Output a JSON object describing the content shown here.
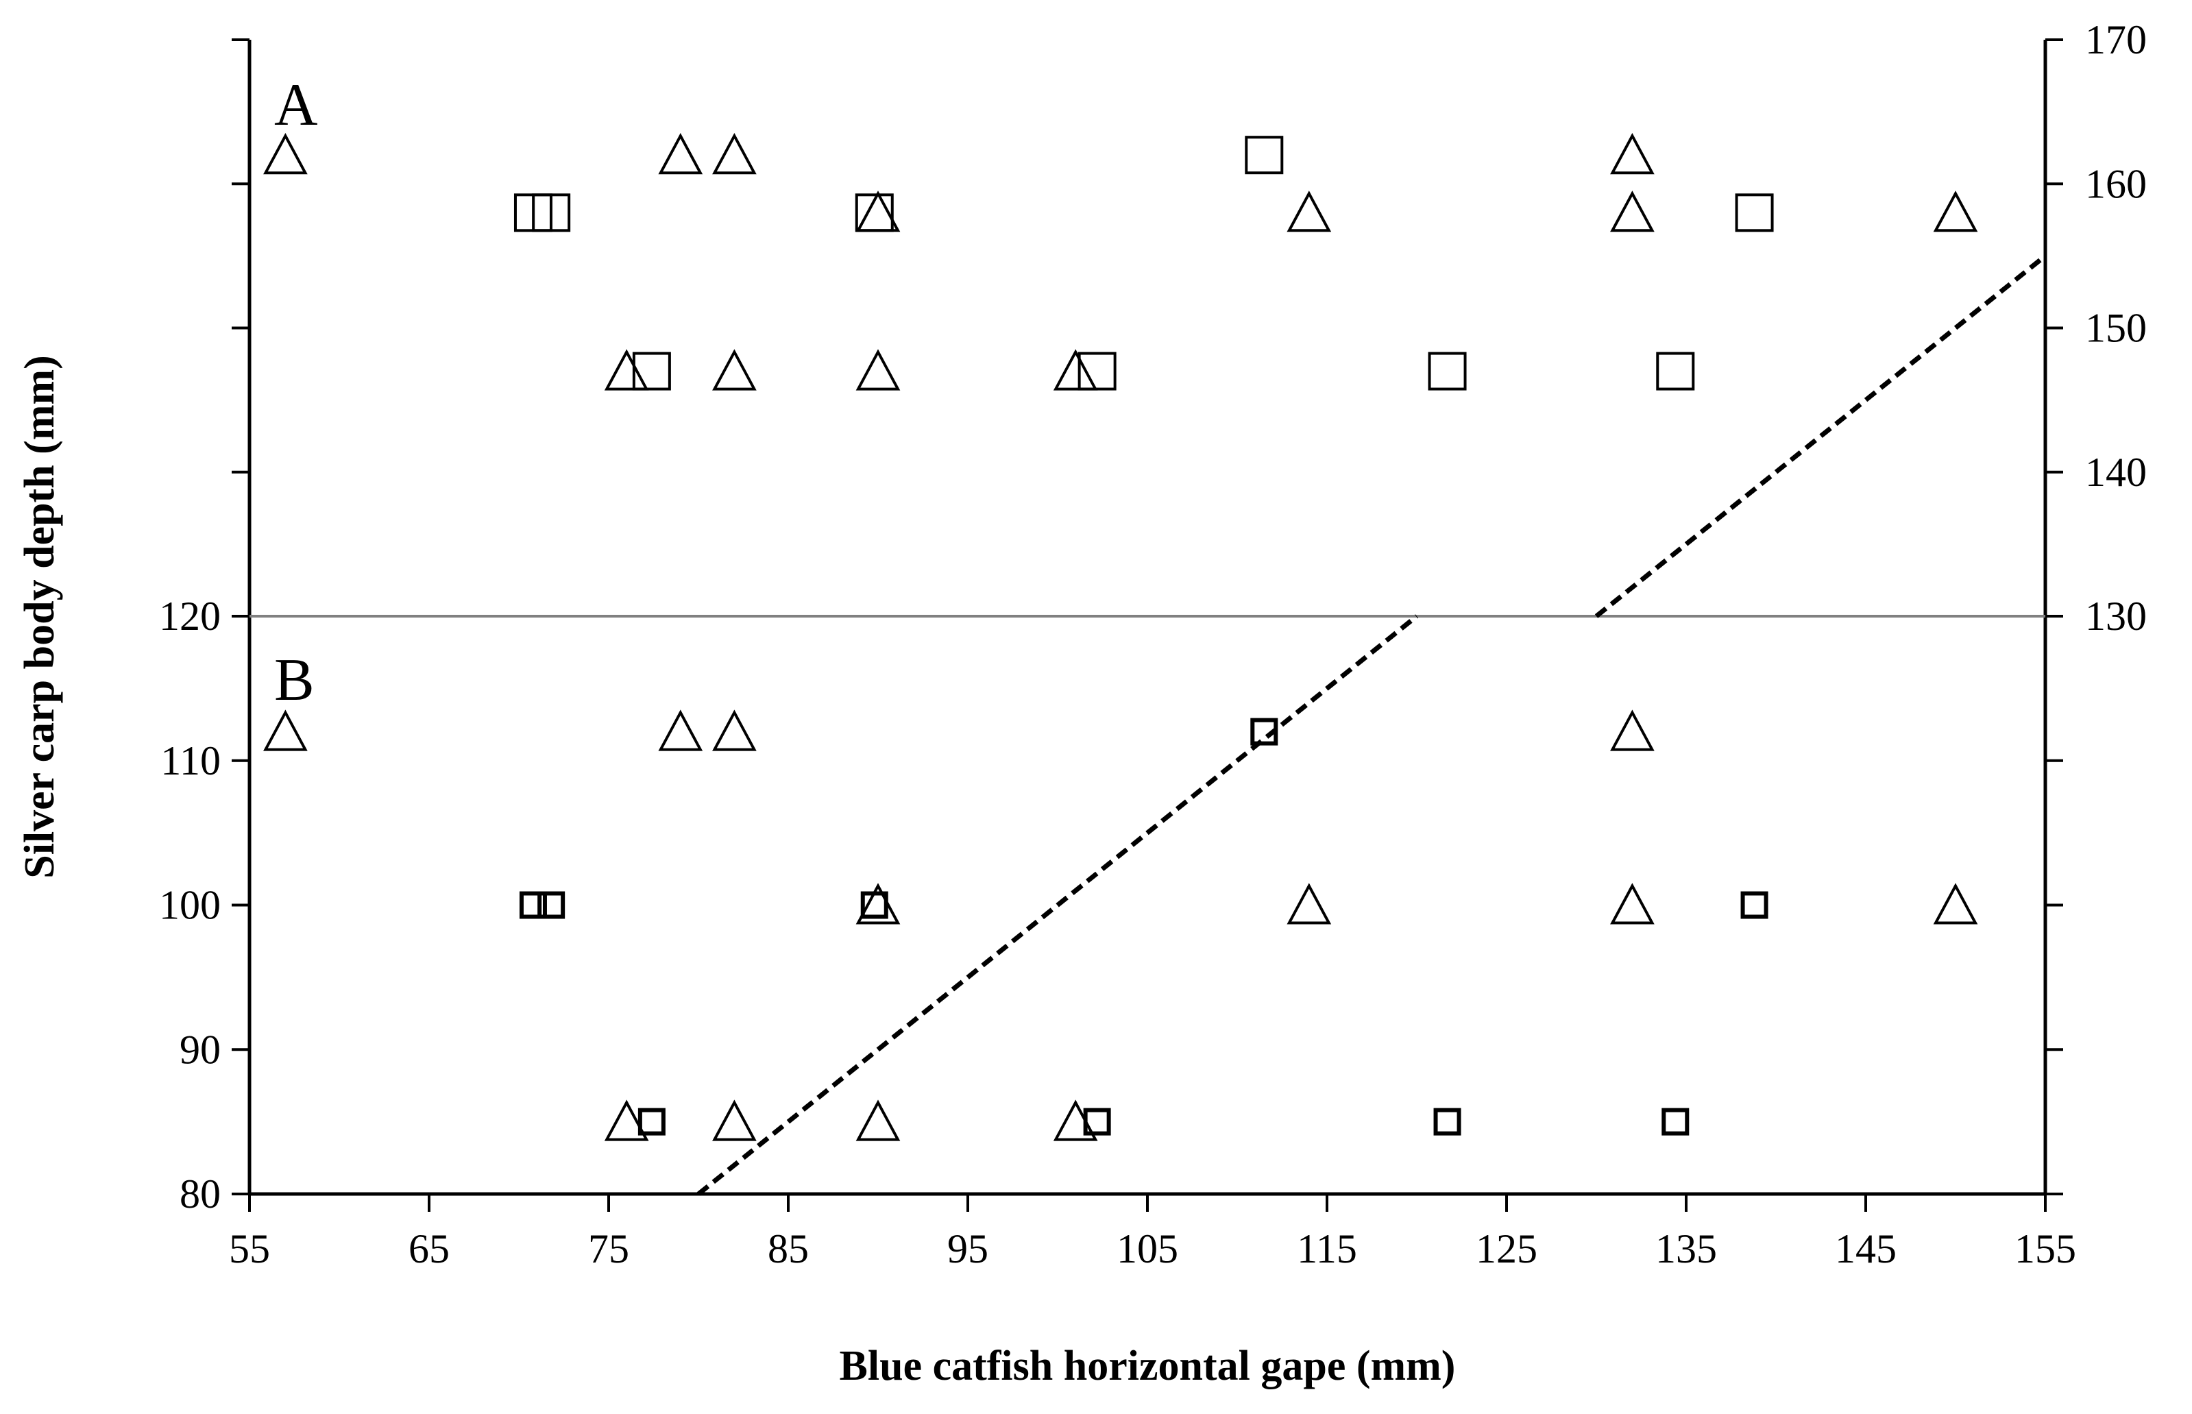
{
  "chart_data": {
    "type": "scatter",
    "xlabel": "Blue catfish horizontal gape (mm)",
    "ylabel": "Silver carp body depth (mm)",
    "xlim": [
      55,
      155
    ],
    "x_ticks": [
      55,
      65,
      75,
      85,
      95,
      105,
      115,
      125,
      135,
      145,
      155
    ],
    "grid": false,
    "marker_color": "#000000",
    "divider_color": "#808080",
    "panels": [
      {
        "label": "A",
        "axis": "right",
        "ylim": [
          130,
          170
        ],
        "y_ticks": [
          130,
          140,
          150,
          160,
          170
        ],
        "series": [
          {
            "marker": "triangle",
            "points": [
              [
                57,
                162
              ],
              [
                79,
                162
              ],
              [
                82,
                162
              ],
              [
                132,
                162
              ],
              [
                90,
                158
              ],
              [
                114,
                158
              ],
              [
                132,
                158
              ],
              [
                150,
                158
              ],
              [
                76,
                147
              ],
              [
                82,
                147
              ],
              [
                90,
                147
              ],
              [
                101,
                147
              ]
            ]
          },
          {
            "marker": "square",
            "points": [
              [
                111.5,
                162
              ],
              [
                70.8,
                158
              ],
              [
                71.8,
                158
              ],
              [
                89.8,
                158
              ],
              [
                138.8,
                158
              ],
              [
                77.4,
                147
              ],
              [
                102.2,
                147
              ],
              [
                121.7,
                147
              ],
              [
                134.4,
                147
              ]
            ]
          }
        ],
        "fit_line": [
          [
            130,
            130
          ],
          [
            155,
            155
          ]
        ]
      },
      {
        "label": "B",
        "axis": "left",
        "ylim": [
          80,
          120
        ],
        "y_ticks": [
          80,
          90,
          100,
          110,
          120
        ],
        "series": [
          {
            "marker": "triangle",
            "points": [
              [
                57,
                112
              ],
              [
                79,
                112
              ],
              [
                82,
                112
              ],
              [
                132,
                112
              ],
              [
                90,
                100
              ],
              [
                114,
                100
              ],
              [
                132,
                100
              ],
              [
                150,
                100
              ],
              [
                76,
                85
              ],
              [
                82,
                85
              ],
              [
                90,
                85
              ],
              [
                101,
                85
              ]
            ]
          },
          {
            "marker": "square",
            "points": [
              [
                111.5,
                112
              ],
              [
                70.8,
                100
              ],
              [
                71.8,
                100
              ],
              [
                89.8,
                100
              ],
              [
                138.8,
                100
              ],
              [
                77.4,
                85
              ],
              [
                102.2,
                85
              ],
              [
                121.7,
                85
              ],
              [
                134.4,
                85
              ]
            ]
          }
        ],
        "fit_line": [
          [
            80,
            80
          ],
          [
            120,
            120
          ]
        ]
      }
    ]
  }
}
